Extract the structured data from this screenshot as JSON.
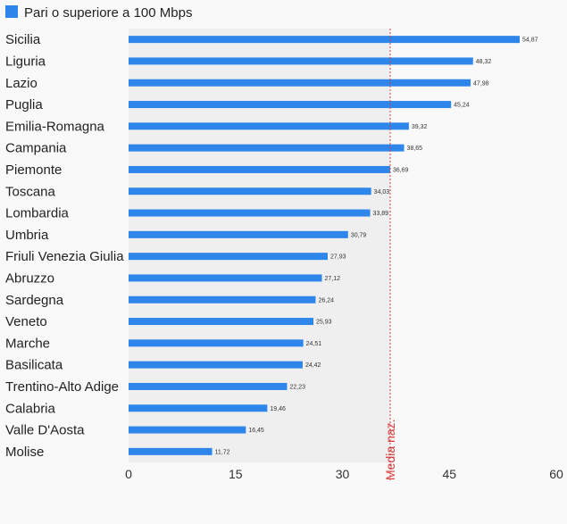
{
  "chart_data": {
    "type": "bar",
    "orientation": "horizontal",
    "legend": "Pari o superiore a 100 Mbps",
    "legend_position": "top-left",
    "series": [
      {
        "name": "Pari o superiore a 100 Mbps",
        "color": "#2e86eb",
        "values": [
          54.87,
          48.32,
          47.98,
          45.24,
          39.32,
          38.65,
          36.69,
          34.03,
          33.89,
          30.79,
          27.93,
          27.12,
          26.24,
          25.93,
          24.51,
          24.42,
          22.23,
          19.46,
          16.45,
          11.72
        ]
      }
    ],
    "categories": [
      "Sicilia",
      "Liguria",
      "Lazio",
      "Puglia",
      "Emilia-Romagna",
      "Campania",
      "Piemonte",
      "Toscana",
      "Lombardia",
      "Umbria",
      "Friuli Venezia Giulia",
      "Abruzzo",
      "Sardegna",
      "Veneto",
      "Marche",
      "Basilicata",
      "Trentino-Alto Adige",
      "Calabria",
      "Valle D'Aosta",
      "Molise"
    ],
    "value_labels": [
      "54,87",
      "48,32",
      "47,98",
      "45,24",
      "39,32",
      "38,65",
      "36,69",
      "34,03",
      "33,89",
      "30,79",
      "27,93",
      "27,12",
      "26,24",
      "25,93",
      "24,51",
      "24,42",
      "22,23",
      "19,46",
      "16,45",
      "11,72"
    ],
    "x_ticks": [
      0,
      15,
      30,
      45,
      60
    ],
    "x_tick_labels": [
      "0",
      "15",
      "30",
      "45",
      "60"
    ],
    "xlim": [
      0,
      60
    ],
    "reference_line": {
      "label": "Media naz.",
      "value": 36.7,
      "color": "#d43b3b"
    },
    "shaded_region": [
      0,
      36.7
    ],
    "grid": false
  }
}
